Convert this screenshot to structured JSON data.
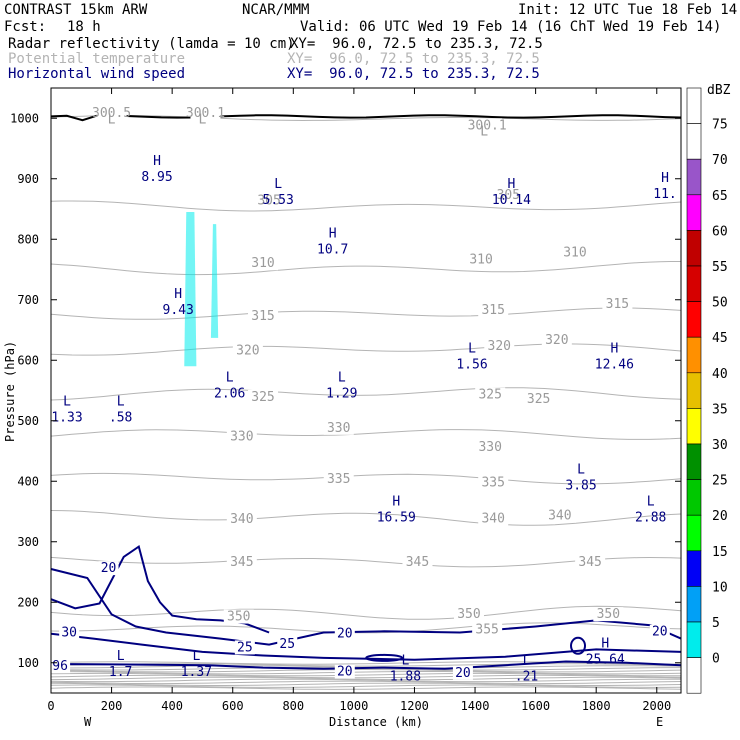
{
  "header": {
    "model": "CONTRAST 15km ARW",
    "center": "NCAR/MMM",
    "init": "Init: 12 UTC Tue 18 Feb 14",
    "fcst_label": "Fcst:",
    "fcst_value": "18 h",
    "valid": "Valid: 06 UTC Wed 19 Feb 14 (16 ChT Wed 19 Feb 14)",
    "fields": [
      {
        "name": "Radar reflectivity (lamda = 10 cm)",
        "xy": "XY=  96.0, 72.5 to 235.3, 72.5",
        "color": "#000000"
      },
      {
        "name": "Potential temperature",
        "xy": "XY=  96.0, 72.5 to 235.3, 72.5",
        "color": "#b4b4b4"
      },
      {
        "name": "Horizontal wind speed",
        "xy": "XY=  96.0, 72.5 to 235.3, 72.5",
        "color": "#000080"
      }
    ]
  },
  "chart_data": {
    "type": "cross-section",
    "xlabel": "Distance (km)",
    "ylabel": "Pressure (hPa)",
    "x_ticks": [
      0,
      200,
      400,
      600,
      800,
      1000,
      1200,
      1400,
      1600,
      1800,
      2000
    ],
    "y_ticks": [
      100,
      200,
      300,
      400,
      500,
      600,
      700,
      800,
      900,
      1000
    ],
    "xlim": [
      0,
      2080
    ],
    "ylim": [
      1050,
      50
    ],
    "west_label": "W",
    "east_label": "E",
    "colorbar": {
      "title": "dBZ",
      "levels": [
        0,
        5,
        10,
        15,
        20,
        25,
        30,
        35,
        40,
        45,
        50,
        55,
        60,
        65,
        70,
        75
      ],
      "colors": [
        "#ffffff",
        "#00ecec",
        "#01a0f6",
        "#0000f6",
        "#00ff00",
        "#00c800",
        "#009000",
        "#ffff00",
        "#e7c000",
        "#ff9000",
        "#ff0000",
        "#d60000",
        "#c00000",
        "#ff00ff",
        "#9955c9",
        "#ffffff"
      ]
    },
    "theta_labels": [
      {
        "text": "350",
        "x": 620,
        "p": 178
      },
      {
        "text": "355",
        "x": 1440,
        "p": 157
      },
      {
        "text": "350",
        "x": 1380,
        "p": 182
      },
      {
        "text": "350",
        "x": 1840,
        "p": 182
      },
      {
        "text": "345",
        "x": 630,
        "p": 268
      },
      {
        "text": "345",
        "x": 1210,
        "p": 268
      },
      {
        "text": "345",
        "x": 1780,
        "p": 268
      },
      {
        "text": "340",
        "x": 630,
        "p": 339
      },
      {
        "text": "340",
        "x": 1460,
        "p": 340
      },
      {
        "text": "340",
        "x": 1680,
        "p": 345
      },
      {
        "text": "335",
        "x": 950,
        "p": 405
      },
      {
        "text": "335",
        "x": 1460,
        "p": 400
      },
      {
        "text": "330",
        "x": 630,
        "p": 476
      },
      {
        "text": "330",
        "x": 950,
        "p": 490
      },
      {
        "text": "330",
        "x": 1450,
        "p": 458
      },
      {
        "text": "325",
        "x": 700,
        "p": 541
      },
      {
        "text": "325",
        "x": 1450,
        "p": 545
      },
      {
        "text": "325",
        "x": 1610,
        "p": 538
      },
      {
        "text": "320",
        "x": 650,
        "p": 618
      },
      {
        "text": "320",
        "x": 1480,
        "p": 625
      },
      {
        "text": "320",
        "x": 1670,
        "p": 635
      },
      {
        "text": "315",
        "x": 700,
        "p": 675
      },
      {
        "text": "315",
        "x": 1460,
        "p": 685
      },
      {
        "text": "315",
        "x": 1870,
        "p": 695
      },
      {
        "text": "310",
        "x": 700,
        "p": 762
      },
      {
        "text": "310",
        "x": 1420,
        "p": 768
      },
      {
        "text": "310",
        "x": 1730,
        "p": 780
      },
      {
        "text": "305",
        "x": 720,
        "p": 866
      },
      {
        "text": "305",
        "x": 1510,
        "p": 875
      },
      {
        "text": "300.5",
        "x": 200,
        "p": 1010
      },
      {
        "text": "300.1",
        "x": 510,
        "p": 1010
      },
      {
        "text": "300.1",
        "x": 1440,
        "p": 990
      }
    ],
    "theta_extrema": [
      {
        "text": "L",
        "x": 200,
        "p": 985
      },
      {
        "text": "L",
        "x": 500,
        "p": 985
      },
      {
        "text": "L",
        "x": 1430,
        "p": 965
      }
    ],
    "wind_extrema": [
      {
        "kind": "L",
        "value": "1.7",
        "x": 230,
        "p": 100
      },
      {
        "kind": "L",
        "value": "1.37",
        "x": 480,
        "p": 100
      },
      {
        "kind": "L",
        "value": "1.88",
        "x": 1170,
        "p": 92
      },
      {
        "kind": "L",
        "value": ".21",
        "x": 1570,
        "p": 92
      },
      {
        "kind": "H",
        "value": "25.64",
        "x": 1830,
        "p": 120
      },
      {
        "kind": "H",
        "value": "16.59",
        "x": 1140,
        "p": 355
      },
      {
        "kind": "L",
        "value": "2.88",
        "x": 1980,
        "p": 355
      },
      {
        "kind": "L",
        "value": "3.85",
        "x": 1750,
        "p": 408
      },
      {
        "kind": "L",
        "value": "1.33",
        "x": 30,
        "p": 520
      },
      {
        "kind": "L",
        "value": ".58",
        "x": 230,
        "p": 520
      },
      {
        "kind": "L",
        "value": "2.06",
        "x": 590,
        "p": 560
      },
      {
        "kind": "L",
        "value": "1.29",
        "x": 960,
        "p": 560
      },
      {
        "kind": "L",
        "value": "1.56",
        "x": 1390,
        "p": 608
      },
      {
        "kind": "H",
        "value": "12.46",
        "x": 1860,
        "p": 608
      },
      {
        "kind": "H",
        "value": "9.43",
        "x": 420,
        "p": 698
      },
      {
        "kind": "H",
        "value": "10.7",
        "x": 930,
        "p": 798
      },
      {
        "kind": "L",
        "value": "5.53",
        "x": 750,
        "p": 880
      },
      {
        "kind": "H",
        "value": "10.14",
        "x": 1520,
        "p": 880
      },
      {
        "kind": "H",
        "value": "11.",
        "x": 2040,
        "p": 890
      },
      {
        "kind": "H",
        "value": "8.95",
        "x": 350,
        "p": 918
      }
    ],
    "wind_contour_labels": [
      {
        "text": "96",
        "x": 30,
        "p": 96
      },
      {
        "text": "20",
        "x": 970,
        "p": 87
      },
      {
        "text": "20",
        "x": 1360,
        "p": 85
      },
      {
        "text": "25",
        "x": 640,
        "p": 127
      },
      {
        "text": "25",
        "x": 780,
        "p": 133
      },
      {
        "text": "20",
        "x": 970,
        "p": 150
      },
      {
        "text": "30",
        "x": 60,
        "p": 152
      },
      {
        "text": "20",
        "x": 190,
        "p": 258
      },
      {
        "text": "20",
        "x": 2010,
        "p": 153
      }
    ],
    "reflectivity_cells": [
      {
        "dbz": 5,
        "x_min": 440,
        "x_max": 480,
        "p_top": 590,
        "p_bottom": 845
      },
      {
        "dbz": 5,
        "x_min": 528,
        "x_max": 552,
        "p_top": 637,
        "p_bottom": 825
      }
    ]
  }
}
